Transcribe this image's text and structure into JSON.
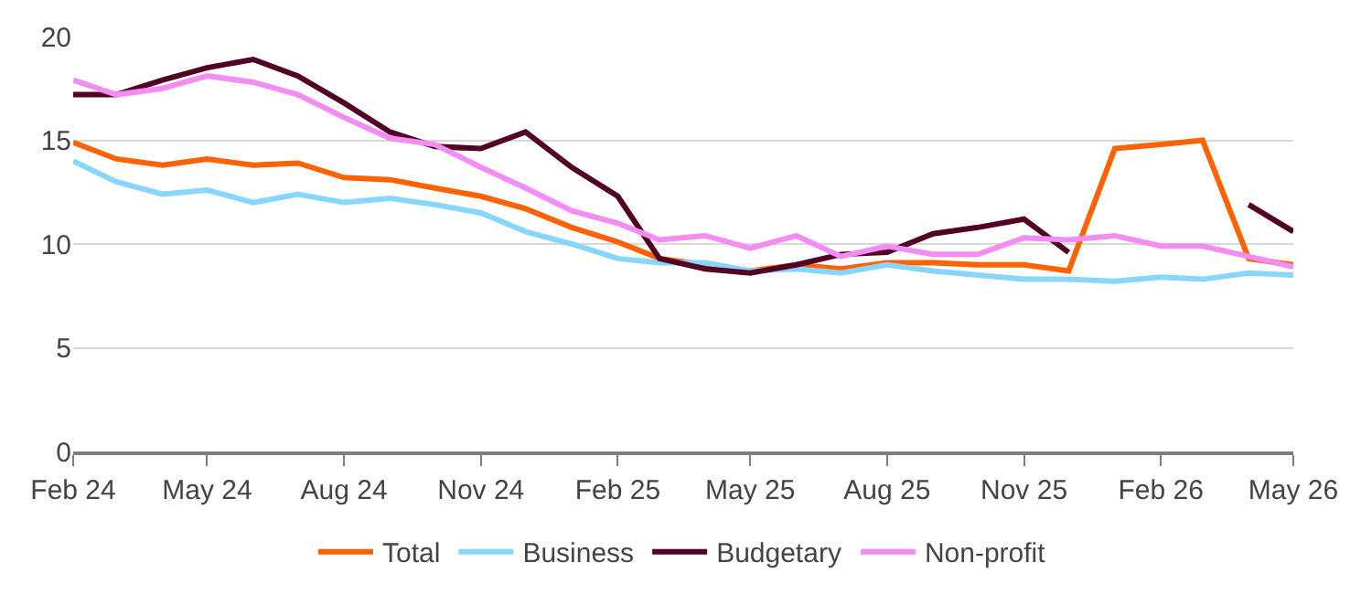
{
  "chart_data": {
    "type": "line",
    "x": [
      "2024-02",
      "2024-03",
      "2024-04",
      "2024-05",
      "2024-06",
      "2024-07",
      "2024-08",
      "2024-09",
      "2024-10",
      "2024-11",
      "2024-12",
      "2025-01",
      "2025-02",
      "2025-03",
      "2025-04",
      "2025-05",
      "2025-06",
      "2025-07",
      "2025-08",
      "2025-09",
      "2025-10",
      "2025-11",
      "2025-12",
      "2026-01",
      "2026-02",
      "2026-03",
      "2026-04",
      "2026-05"
    ],
    "series": [
      {
        "name": "Total",
        "color": "#ff6200",
        "values": [
          14.9,
          14.1,
          13.8,
          14.1,
          13.8,
          13.9,
          13.2,
          13.1,
          12.7,
          12.3,
          11.7,
          10.8,
          10.1,
          9.3,
          9.0,
          8.7,
          9.0,
          8.8,
          9.1,
          9.1,
          9.0,
          9.0,
          8.7,
          14.6,
          14.8,
          15.0,
          9.3,
          9.0
        ]
      },
      {
        "name": "Business",
        "color": "#89d6fd",
        "values": [
          14.0,
          13.0,
          12.4,
          12.6,
          12.0,
          12.4,
          12.0,
          12.2,
          11.9,
          11.5,
          10.6,
          10.0,
          9.3,
          9.1,
          9.1,
          8.7,
          8.8,
          8.6,
          9.0,
          8.7,
          8.5,
          8.3,
          8.3,
          8.2,
          8.4,
          8.3,
          8.6,
          8.5
        ]
      },
      {
        "name": "Budgetary",
        "color": "#520024",
        "values": [
          17.2,
          17.2,
          17.9,
          18.5,
          18.9,
          18.1,
          16.8,
          15.4,
          14.7,
          14.6,
          15.4,
          13.7,
          12.3,
          9.3,
          8.8,
          8.6,
          9.0,
          9.5,
          9.6,
          10.5,
          10.8,
          11.2,
          9.6,
          null,
          null,
          null,
          11.9,
          10.6
        ]
      },
      {
        "name": "Non-profit",
        "color": "#f38cf3",
        "values": [
          17.9,
          17.2,
          17.5,
          18.1,
          17.8,
          17.2,
          16.1,
          15.1,
          14.8,
          13.7,
          12.7,
          11.6,
          11.0,
          10.2,
          10.4,
          9.8,
          10.4,
          9.4,
          9.9,
          9.5,
          9.5,
          10.3,
          10.2,
          10.4,
          9.9,
          9.9,
          9.4,
          8.9
        ]
      }
    ],
    "xlim": [
      "2024-02",
      "2026-05"
    ],
    "xticks": [
      {
        "value": "2024-02",
        "label": "Feb 24"
      },
      {
        "value": "2024-05",
        "label": "May 24"
      },
      {
        "value": "2024-08",
        "label": "Aug 24"
      },
      {
        "value": "2024-11",
        "label": "Nov 24"
      },
      {
        "value": "2025-02",
        "label": "Feb 25"
      },
      {
        "value": "2025-05",
        "label": "May 25"
      },
      {
        "value": "2025-08",
        "label": "Aug 25"
      },
      {
        "value": "2025-11",
        "label": "Nov 25"
      },
      {
        "value": "2026-02",
        "label": "Feb 26"
      },
      {
        "value": "2026-05",
        "label": "May 26"
      }
    ],
    "ylim": [
      0,
      20
    ],
    "yticks": [
      0,
      5,
      10,
      15,
      20
    ],
    "grid": "y",
    "legend": "bottom",
    "marker": "none",
    "line_style": "solid"
  }
}
